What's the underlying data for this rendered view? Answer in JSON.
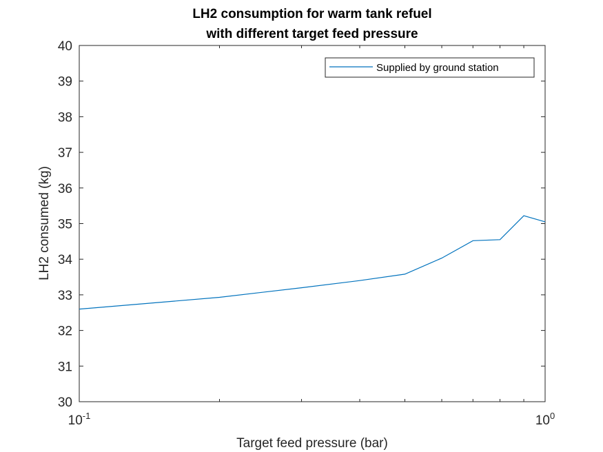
{
  "chart_data": {
    "type": "line",
    "title_lines": [
      "LH2 consumption for warm tank refuel",
      "with different target feed pressure"
    ],
    "xlabel": "Target feed pressure (bar)",
    "ylabel": "LH2 consumed (kg)",
    "xscale": "log",
    "xlim": [
      0.1,
      1.0
    ],
    "ylim": [
      30,
      40
    ],
    "x_tick_labels": [
      {
        "value": 0.1,
        "base": "10",
        "exp": "-1"
      },
      {
        "value": 1.0,
        "base": "10",
        "exp": "0"
      }
    ],
    "y_ticks": [
      30,
      31,
      32,
      33,
      34,
      35,
      36,
      37,
      38,
      39,
      40
    ],
    "legend_position": "top-right",
    "grid": false,
    "series": [
      {
        "name": "Supplied by ground station",
        "color": "#0072BD",
        "x": [
          0.1,
          0.2,
          0.3,
          0.4,
          0.5,
          0.6,
          0.7,
          0.8,
          0.9,
          1.0
        ],
        "y": [
          32.6,
          32.93,
          33.2,
          33.4,
          33.58,
          34.03,
          34.52,
          34.55,
          35.22,
          35.05
        ]
      }
    ]
  }
}
